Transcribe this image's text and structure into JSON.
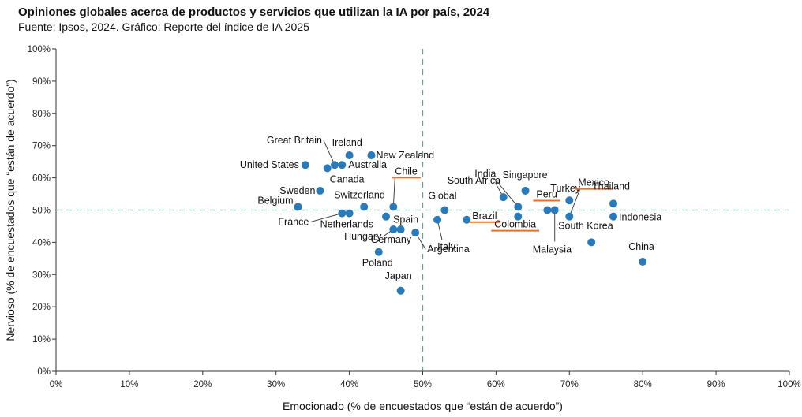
{
  "header": {
    "title": "Opiniones globales acerca de productos y servicios que utilizan la IA por país, 2024",
    "subtitle": "Fuente: Ipsos, 2024.  Gráfico: Reporte del índice de IA 2025"
  },
  "colors": {
    "point": "#2a79b8",
    "highlight": "#e8702a",
    "reference": "#6aa08e"
  },
  "chart_data": {
    "type": "scatter",
    "xlabel": "Emocionado (% de encuestados que “están de acuerdo”)",
    "ylabel": "Nervioso (% de encuestados que “están de acuerdo”)",
    "xlim": [
      0,
      100
    ],
    "ylim": [
      0,
      100
    ],
    "xticks": [
      "0%",
      "10%",
      "20%",
      "30%",
      "40%",
      "50%",
      "60%",
      "70%",
      "80%",
      "90%",
      "100%"
    ],
    "yticks": [
      "0%",
      "10%",
      "20%",
      "30%",
      "40%",
      "50%",
      "60%",
      "70%",
      "80%",
      "90%",
      "100%"
    ],
    "reference_lines": {
      "x": 50,
      "y": 50
    },
    "grid": false,
    "points": [
      {
        "name": "Great Britain",
        "x": 38,
        "y": 64,
        "highlight": false
      },
      {
        "name": "Ireland",
        "x": 40,
        "y": 67,
        "highlight": false
      },
      {
        "name": "New Zealand",
        "x": 43,
        "y": 67,
        "highlight": false
      },
      {
        "name": "Australia",
        "x": 39,
        "y": 64,
        "highlight": false
      },
      {
        "name": "United States",
        "x": 34,
        "y": 64,
        "highlight": false
      },
      {
        "name": "Canada",
        "x": 37,
        "y": 63,
        "highlight": false
      },
      {
        "name": "Sweden",
        "x": 36,
        "y": 56,
        "highlight": false
      },
      {
        "name": "Belgium",
        "x": 33,
        "y": 51,
        "highlight": false
      },
      {
        "name": "Switzerland",
        "x": 42,
        "y": 51,
        "highlight": false
      },
      {
        "name": "France",
        "x": 39,
        "y": 49,
        "highlight": false
      },
      {
        "name": "Netherlands",
        "x": 40,
        "y": 49,
        "highlight": false
      },
      {
        "name": "Chile",
        "x": 46,
        "y": 51,
        "highlight": true
      },
      {
        "name": "Spain",
        "x": 45,
        "y": 48,
        "highlight": false
      },
      {
        "name": "Hungary",
        "x": 46,
        "y": 44,
        "highlight": false
      },
      {
        "name": "Germany",
        "x": 47,
        "y": 44,
        "highlight": false
      },
      {
        "name": "Argentina",
        "x": 49,
        "y": 43,
        "highlight": false
      },
      {
        "name": "Poland",
        "x": 44,
        "y": 37,
        "highlight": false
      },
      {
        "name": "Japan",
        "x": 47,
        "y": 25,
        "highlight": false
      },
      {
        "name": "Global",
        "x": 53,
        "y": 50,
        "highlight": false
      },
      {
        "name": "Italy",
        "x": 52,
        "y": 47,
        "highlight": false
      },
      {
        "name": "Brazil",
        "x": 56,
        "y": 47,
        "highlight": true
      },
      {
        "name": "South Africa",
        "x": 61,
        "y": 54,
        "highlight": false
      },
      {
        "name": "India",
        "x": 63,
        "y": 51,
        "highlight": false
      },
      {
        "name": "Singapore",
        "x": 64,
        "y": 56,
        "highlight": false
      },
      {
        "name": "Colombia",
        "x": 63,
        "y": 48,
        "highlight": true
      },
      {
        "name": "Peru",
        "x": 67,
        "y": 50,
        "highlight": true
      },
      {
        "name": "Malaysia",
        "x": 68,
        "y": 50,
        "highlight": false
      },
      {
        "name": "Turkey",
        "x": 70,
        "y": 53,
        "highlight": false
      },
      {
        "name": "Mexico",
        "x": 70,
        "y": 48,
        "highlight": true
      },
      {
        "name": "Thailand",
        "x": 76,
        "y": 52,
        "highlight": false
      },
      {
        "name": "Indonesia",
        "x": 76,
        "y": 48,
        "highlight": false
      },
      {
        "name": "South Korea",
        "x": 73,
        "y": 40,
        "highlight": false
      },
      {
        "name": "China",
        "x": 80,
        "y": 34,
        "highlight": false
      }
    ]
  }
}
